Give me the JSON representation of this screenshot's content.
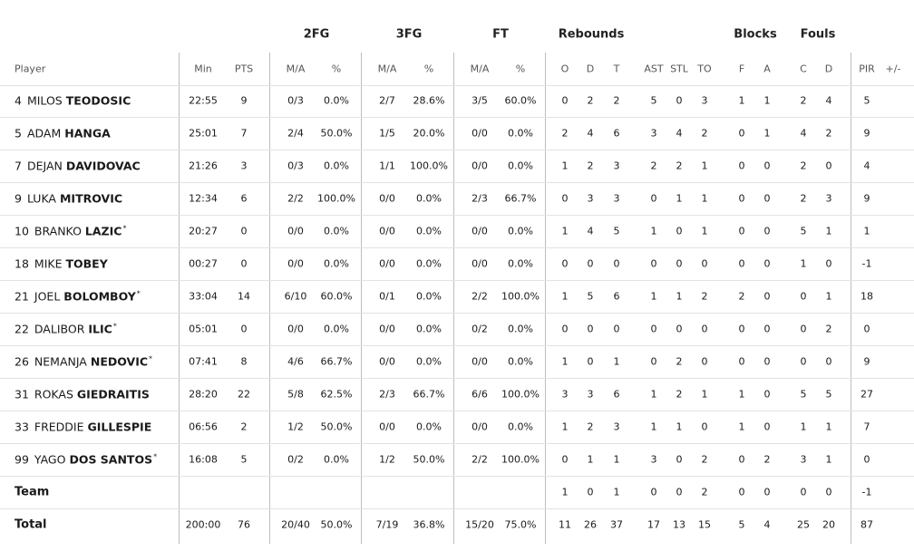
{
  "table": {
    "player_header": "Player",
    "groups": [
      "2FG",
      "3FG",
      "FT",
      "Rebounds",
      "Blocks",
      "Fouls"
    ],
    "columns": [
      "Min",
      "PTS",
      "M/A",
      "%",
      "M/A",
      "%",
      "M/A",
      "%",
      "O",
      "D",
      "T",
      "AST",
      "STL",
      "TO",
      "F",
      "A",
      "C",
      "D",
      "PIR",
      "+/-"
    ],
    "rows": [
      {
        "number": "4",
        "first": "MILOS",
        "last": "TEODOSIC",
        "cells": [
          "22:55",
          "9",
          "0/3",
          "0.0%",
          "2/7",
          "28.6%",
          "3/5",
          "60.0%",
          "0",
          "2",
          "2",
          "5",
          "0",
          "3",
          "1",
          "1",
          "2",
          "4",
          "5",
          null
        ]
      },
      {
        "number": "5",
        "first": "ADAM",
        "last": "HANGA",
        "cells": [
          "25:01",
          "7",
          "2/4",
          "50.0%",
          "1/5",
          "20.0%",
          "0/0",
          "0.0%",
          "2",
          "4",
          "6",
          "3",
          "4",
          "2",
          "0",
          "1",
          "4",
          "2",
          "9",
          null
        ]
      },
      {
        "number": "7",
        "first": "DEJAN",
        "last": "DAVIDOVAC",
        "cells": [
          "21:26",
          "3",
          "0/3",
          "0.0%",
          "1/1",
          "100.0%",
          "0/0",
          "0.0%",
          "1",
          "2",
          "3",
          "2",
          "2",
          "1",
          "0",
          "0",
          "2",
          "0",
          "4",
          null
        ]
      },
      {
        "number": "9",
        "first": "LUKA",
        "last": "MITROVIC",
        "cells": [
          "12:34",
          "6",
          "2/2",
          "100.0%",
          "0/0",
          "0.0%",
          "2/3",
          "66.7%",
          "0",
          "3",
          "3",
          "0",
          "1",
          "1",
          "0",
          "0",
          "2",
          "3",
          "9",
          null
        ]
      },
      {
        "number": "10",
        "first": "BRANKO",
        "last": "LAZIC",
        "mark": "*",
        "cells": [
          "20:27",
          "0",
          "0/0",
          "0.0%",
          "0/0",
          "0.0%",
          "0/0",
          "0.0%",
          "1",
          "4",
          "5",
          "1",
          "0",
          "1",
          "0",
          "0",
          "5",
          "1",
          "1",
          null
        ]
      },
      {
        "number": "18",
        "first": "MIKE",
        "last": "TOBEY",
        "cells": [
          "00:27",
          "0",
          "0/0",
          "0.0%",
          "0/0",
          "0.0%",
          "0/0",
          "0.0%",
          "0",
          "0",
          "0",
          "0",
          "0",
          "0",
          "0",
          "0",
          "1",
          "0",
          "-1",
          null
        ]
      },
      {
        "number": "21",
        "first": "JOEL",
        "last": "BOLOMBOY",
        "mark": "*",
        "cells": [
          "33:04",
          "14",
          "6/10",
          "60.0%",
          "0/1",
          "0.0%",
          "2/2",
          "100.0%",
          "1",
          "5",
          "6",
          "1",
          "1",
          "2",
          "2",
          "0",
          "0",
          "1",
          "18",
          null
        ]
      },
      {
        "number": "22",
        "first": "DALIBOR",
        "last": "ILIC",
        "mark": "*",
        "cells": [
          "05:01",
          "0",
          "0/0",
          "0.0%",
          "0/0",
          "0.0%",
          "0/2",
          "0.0%",
          "0",
          "0",
          "0",
          "0",
          "0",
          "0",
          "0",
          "0",
          "0",
          "2",
          "0",
          null
        ]
      },
      {
        "number": "26",
        "first": "NEMANJA",
        "last": "NEDOVIC",
        "mark": "*",
        "cells": [
          "07:41",
          "8",
          "4/6",
          "66.7%",
          "0/0",
          "0.0%",
          "0/0",
          "0.0%",
          "1",
          "0",
          "1",
          "0",
          "2",
          "0",
          "0",
          "0",
          "0",
          "0",
          "9",
          null
        ]
      },
      {
        "number": "31",
        "first": "ROKAS",
        "last": "GIEDRAITIS",
        "cells": [
          "28:20",
          "22",
          "5/8",
          "62.5%",
          "2/3",
          "66.7%",
          "6/6",
          "100.0%",
          "3",
          "3",
          "6",
          "1",
          "2",
          "1",
          "1",
          "0",
          "5",
          "5",
          "27",
          null
        ]
      },
      {
        "number": "33",
        "first": "FREDDIE",
        "last": "GILLESPIE",
        "cells": [
          "06:56",
          "2",
          "1/2",
          "50.0%",
          "0/0",
          "0.0%",
          "0/0",
          "0.0%",
          "1",
          "2",
          "3",
          "1",
          "1",
          "0",
          "1",
          "0",
          "1",
          "1",
          "7",
          null
        ]
      },
      {
        "number": "99",
        "first": "YAGO",
        "last": "DOS SANTOS",
        "mark": "*",
        "cells": [
          "16:08",
          "5",
          "0/2",
          "0.0%",
          "1/2",
          "50.0%",
          "2/2",
          "100.0%",
          "0",
          "1",
          "1",
          "3",
          "0",
          "2",
          "0",
          "2",
          "3",
          "1",
          "0",
          null
        ]
      },
      {
        "label": "Team",
        "cells": [
          null,
          null,
          null,
          null,
          null,
          null,
          null,
          null,
          "1",
          "0",
          "1",
          "0",
          "0",
          "2",
          "0",
          "0",
          "0",
          "0",
          "-1",
          null
        ]
      },
      {
        "label": "Total",
        "cells": [
          "200:00",
          "76",
          "20/40",
          "50.0%",
          "7/19",
          "36.8%",
          "15/20",
          "75.0%",
          "11",
          "26",
          "37",
          "17",
          "13",
          "15",
          "5",
          "4",
          "25",
          "20",
          "87",
          null
        ]
      }
    ]
  }
}
